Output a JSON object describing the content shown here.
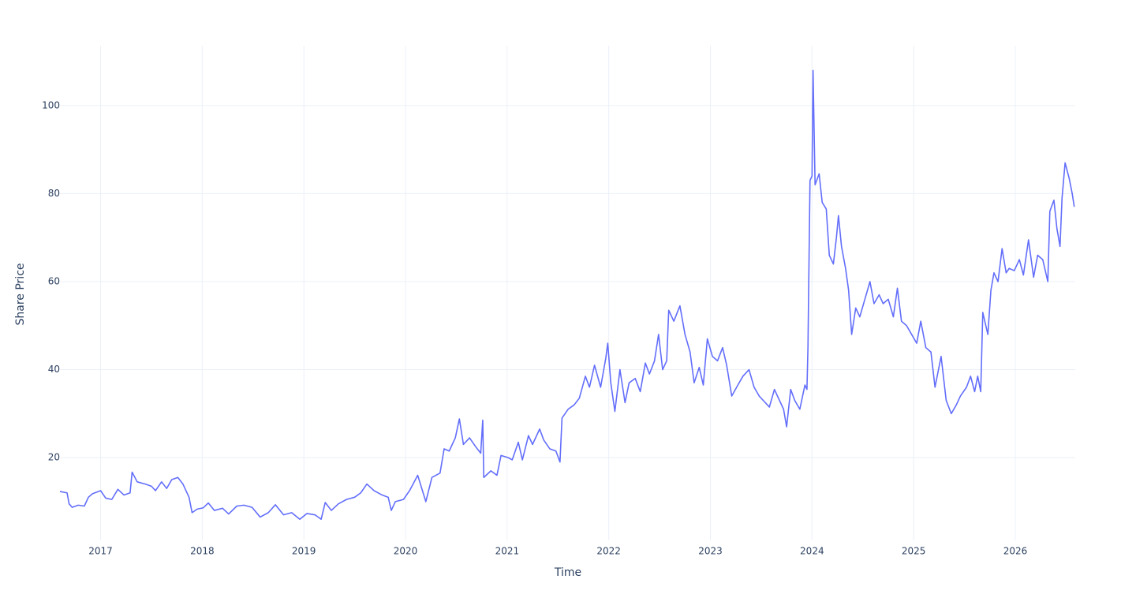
{
  "chart_data": {
    "type": "line",
    "x_label": "Time",
    "y_label": "Share Price",
    "color": "#636efa",
    "grid": true,
    "xlim": [
      2016.6,
      2026.59
    ],
    "xticks": [
      2017,
      2018,
      2019,
      2020,
      2021,
      2022,
      2023,
      2024,
      2025,
      2026
    ],
    "ylim": [
      1.2,
      113.6
    ],
    "yticks": [
      20,
      40,
      60,
      80,
      100
    ],
    "x": [
      2016.6,
      2016.67,
      2016.69,
      2016.72,
      2016.78,
      2016.84,
      2016.88,
      2016.92,
      2017.0,
      2017.05,
      2017.11,
      2017.17,
      2017.23,
      2017.29,
      2017.31,
      2017.36,
      2017.44,
      2017.5,
      2017.54,
      2017.6,
      2017.65,
      2017.7,
      2017.76,
      2017.81,
      2017.87,
      2017.9,
      2017.95,
      2018.01,
      2018.06,
      2018.12,
      2018.2,
      2018.26,
      2018.34,
      2018.41,
      2018.49,
      2018.57,
      2018.65,
      2018.72,
      2018.8,
      2018.88,
      2018.96,
      2019.03,
      2019.11,
      2019.17,
      2019.21,
      2019.27,
      2019.34,
      2019.42,
      2019.5,
      2019.56,
      2019.62,
      2019.69,
      2019.77,
      2019.83,
      2019.86,
      2019.9,
      2019.98,
      2020.04,
      2020.12,
      2020.2,
      2020.26,
      2020.34,
      2020.38,
      2020.43,
      2020.49,
      2020.53,
      2020.57,
      2020.63,
      2020.69,
      2020.74,
      2020.76,
      2020.77,
      2020.84,
      2020.9,
      2020.94,
      2021.01,
      2021.05,
      2021.11,
      2021.15,
      2021.21,
      2021.25,
      2021.32,
      2021.36,
      2021.42,
      2021.48,
      2021.52,
      2021.54,
      2021.6,
      2021.66,
      2021.71,
      2021.77,
      2021.81,
      2021.86,
      2021.92,
      2021.97,
      2021.99,
      2022.02,
      2022.06,
      2022.11,
      2022.16,
      2022.2,
      2022.26,
      2022.31,
      2022.36,
      2022.4,
      2022.45,
      2022.49,
      2022.53,
      2022.57,
      2022.59,
      2022.64,
      2022.7,
      2022.75,
      2022.8,
      2022.84,
      2022.89,
      2022.93,
      2022.97,
      2023.02,
      2023.07,
      2023.12,
      2023.16,
      2023.21,
      2023.27,
      2023.32,
      2023.38,
      2023.43,
      2023.48,
      2023.52,
      2023.58,
      2023.63,
      2023.68,
      2023.72,
      2023.75,
      2023.79,
      2023.83,
      2023.88,
      2023.93,
      2023.95,
      2023.96,
      2023.98,
      2024.0,
      2024.01,
      2024.03,
      2024.07,
      2024.1,
      2024.14,
      2024.17,
      2024.21,
      2024.24,
      2024.26,
      2024.29,
      2024.33,
      2024.36,
      2024.39,
      2024.43,
      2024.47,
      2024.52,
      2024.57,
      2024.61,
      2024.66,
      2024.7,
      2024.75,
      2024.8,
      2024.84,
      2024.88,
      2024.93,
      2024.98,
      2025.03,
      2025.07,
      2025.12,
      2025.17,
      2025.21,
      2025.27,
      2025.32,
      2025.37,
      2025.42,
      2025.46,
      2025.52,
      2025.56,
      2025.6,
      2025.63,
      2025.66,
      2025.68,
      2025.73,
      2025.76,
      2025.79,
      2025.83,
      2025.87,
      2025.91,
      2025.94,
      2025.99,
      2026.04,
      2026.08,
      2026.13,
      2026.18,
      2026.22,
      2026.27,
      2026.32,
      2026.34,
      2026.38,
      2026.41,
      2026.44,
      2026.46,
      2026.49,
      2026.53,
      2026.56,
      2026.58
    ],
    "values": [
      12.3,
      12.0,
      9.5,
      8.7,
      9.2,
      9.0,
      11.0,
      11.8,
      12.5,
      10.8,
      10.5,
      12.8,
      11.5,
      12.0,
      16.7,
      14.5,
      14.0,
      13.5,
      12.5,
      14.5,
      13.0,
      15.0,
      15.5,
      14.0,
      11.0,
      7.5,
      8.3,
      8.6,
      9.7,
      8.0,
      8.5,
      7.2,
      9.0,
      9.2,
      8.7,
      6.5,
      7.5,
      9.3,
      7.0,
      7.5,
      6.0,
      7.3,
      7.0,
      6.0,
      9.8,
      8.0,
      9.5,
      10.5,
      11.0,
      12.0,
      14.0,
      12.5,
      11.5,
      11.0,
      8.0,
      10.0,
      10.5,
      12.5,
      16.0,
      10.0,
      15.5,
      16.5,
      22.0,
      21.5,
      24.5,
      28.8,
      23.0,
      24.5,
      22.5,
      21.0,
      28.5,
      15.5,
      17.0,
      16.0,
      20.5,
      20.0,
      19.5,
      23.5,
      19.5,
      25.0,
      23.0,
      26.5,
      24.0,
      22.0,
      21.5,
      19.0,
      29.0,
      31.0,
      32.0,
      33.5,
      38.5,
      36.0,
      41.0,
      36.0,
      42.5,
      46.0,
      37.0,
      30.5,
      40.0,
      32.5,
      37.0,
      38.0,
      35.0,
      41.5,
      39.0,
      42.0,
      48.0,
      40.0,
      42.0,
      53.5,
      51.0,
      54.5,
      48.0,
      44.0,
      37.0,
      40.5,
      36.5,
      47.0,
      43.0,
      42.0,
      45.0,
      41.0,
      34.0,
      36.5,
      38.5,
      40.0,
      36.0,
      34.0,
      33.0,
      31.5,
      35.5,
      33.0,
      31.0,
      27.0,
      35.5,
      33.0,
      31.0,
      36.5,
      35.5,
      45.0,
      83.0,
      84.0,
      108.0,
      82.0,
      84.5,
      78.0,
      76.5,
      66.0,
      64.0,
      70.0,
      75.0,
      68.0,
      63.0,
      58.0,
      48.0,
      54.0,
      52.0,
      56.0,
      60.0,
      55.0,
      57.0,
      55.0,
      56.0,
      52.0,
      58.5,
      51.0,
      50.0,
      48.0,
      46.0,
      51.0,
      45.0,
      44.0,
      36.0,
      43.0,
      33.0,
      30.0,
      32.0,
      34.0,
      36.0,
      38.5,
      35.0,
      38.5,
      35.0,
      53.0,
      48.0,
      58.0,
      62.0,
      60.0,
      67.5,
      62.0,
      63.0,
      62.5,
      65.0,
      61.5,
      69.5,
      61.0,
      66.0,
      65.0,
      60.0,
      76.0,
      78.5,
      72.0,
      68.0,
      79.0,
      87.0,
      83.5,
      80.0,
      77.0
    ]
  }
}
